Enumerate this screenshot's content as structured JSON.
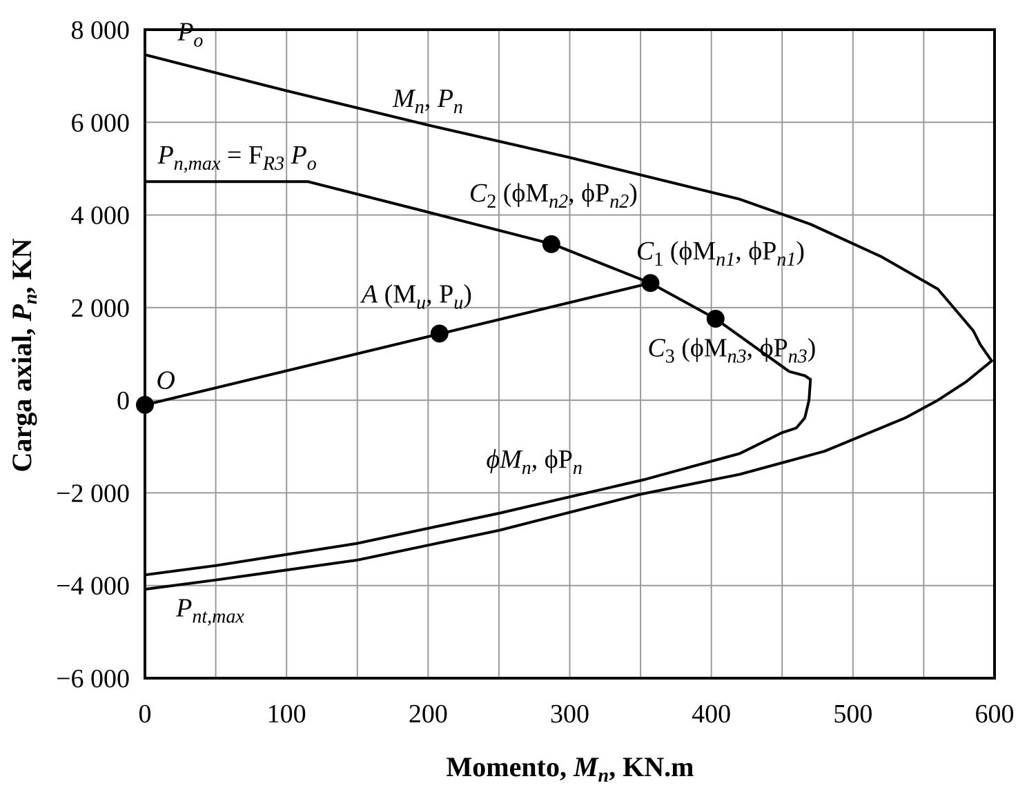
{
  "chart_data": {
    "type": "line",
    "xlabel": {
      "pre": "Momento, ",
      "var": "M",
      "sub": "n",
      "post": ", KN.m"
    },
    "ylabel": {
      "pre": "Carga axial, ",
      "var": "P",
      "sub": "n",
      "post": ", KN"
    },
    "xlim": [
      0,
      600
    ],
    "ylim": [
      -6000,
      8000
    ],
    "x_ticks": [
      0,
      100,
      200,
      300,
      400,
      500,
      600
    ],
    "x_tick_labels": [
      "0",
      "100",
      "200",
      "300",
      "400",
      "500",
      "600"
    ],
    "y_ticks": [
      8000,
      6000,
      4000,
      2000,
      0,
      -2000,
      -4000,
      -6000
    ],
    "y_tick_labels": [
      "8 000",
      "6 000",
      "4 000",
      "2 000",
      "0",
      "−2 000",
      "−4 000",
      "−6 000"
    ],
    "x_minor_grid_step": 50,
    "grid": true,
    "series": [
      {
        "x": [
          0,
          100,
          200,
          300,
          380,
          420,
          470,
          520,
          560,
          585,
          590,
          595,
          598,
          580,
          560,
          537,
          480,
          420,
          350,
          250,
          150,
          50,
          0
        ],
        "y": [
          7460,
          6680,
          5940,
          5240,
          4640,
          4340,
          3800,
          3100,
          2400,
          1500,
          1200,
          980,
          850,
          400,
          0,
          -380,
          -1100,
          -1600,
          -2030,
          -2810,
          -3450,
          -3880,
          -4080
        ]
      },
      {
        "x": [
          0,
          115,
          200,
          288,
          357,
          403,
          455,
          466,
          470,
          469,
          466,
          460,
          450,
          420,
          353,
          250,
          150,
          50,
          0
        ],
        "y": [
          4720,
          4720,
          4060,
          3370,
          2530,
          1760,
          620,
          530,
          450,
          0,
          -380,
          -600,
          -700,
          -1150,
          -1710,
          -2440,
          -3090,
          -3570,
          -3770
        ]
      },
      {
        "x": [
          0,
          357
        ],
        "y": [
          -100,
          2530
        ]
      }
    ],
    "points": [
      {
        "name": "O",
        "x": 0,
        "y": -100
      },
      {
        "name": "A",
        "x": 208,
        "y": 1440
      },
      {
        "name": "C1",
        "x": 357,
        "y": 2530
      },
      {
        "name": "C2",
        "x": 287,
        "y": 3370
      },
      {
        "name": "C3",
        "x": 403,
        "y": 1760
      }
    ],
    "annotations": [
      {
        "id": "po",
        "base": "P",
        "sub": "o",
        "x": 23,
        "y": 7770
      },
      {
        "id": "mn-pn",
        "parts": [
          {
            "t": "M"
          },
          {
            "s": "n"
          },
          {
            "t": ", P"
          },
          {
            "s": "n"
          }
        ],
        "x": 175,
        "y": 6330
      },
      {
        "id": "pnmax",
        "parts": [
          {
            "t": "P"
          },
          {
            "s": "n,max"
          },
          {
            "u": " = F"
          },
          {
            "s": "R3"
          },
          {
            "t": " P"
          },
          {
            "s": "o"
          }
        ],
        "x": 9,
        "y": 5110
      },
      {
        "id": "c2-label",
        "parts": [
          {
            "t": "C"
          },
          {
            "s": "2"
          },
          {
            "u": " (ϕM"
          },
          {
            "s": "n2"
          },
          {
            "u": ", ϕP"
          },
          {
            "s": "n2"
          },
          {
            "u": ")"
          }
        ],
        "x": 229,
        "y": 4290
      },
      {
        "id": "c1-label",
        "parts": [
          {
            "t": "C"
          },
          {
            "s": "1"
          },
          {
            "u": " (ϕM"
          },
          {
            "s": "n1"
          },
          {
            "u": ", ϕP"
          },
          {
            "s": "n1"
          },
          {
            "u": ")"
          }
        ],
        "x": 347,
        "y": 3040
      },
      {
        "id": "a-label",
        "parts": [
          {
            "t": "A"
          },
          {
            "u": " (M"
          },
          {
            "s": "u"
          },
          {
            "u": ", P"
          },
          {
            "s": "u"
          },
          {
            "u": ")"
          }
        ],
        "x": 153,
        "y": 2110
      },
      {
        "id": "c3-label",
        "parts": [
          {
            "t": "C"
          },
          {
            "s": "3"
          },
          {
            "u": " (ϕM"
          },
          {
            "s": "n3"
          },
          {
            "u": ", ϕP"
          },
          {
            "s": "n3"
          },
          {
            "u": ")"
          }
        ],
        "x": 355,
        "y": 950
      },
      {
        "id": "o-label",
        "parts": [
          {
            "t": "O"
          }
        ],
        "x": 8,
        "y": 250
      },
      {
        "id": "phimn-label",
        "parts": [
          {
            "t": "ϕM"
          },
          {
            "s": "n"
          },
          {
            "u": ", ϕP"
          },
          {
            "s": "n"
          }
        ],
        "x": 241,
        "y": -1460
      },
      {
        "id": "pntmax",
        "parts": [
          {
            "t": "P"
          },
          {
            "s": "nt,max"
          }
        ],
        "x": 22,
        "y": -4670
      }
    ]
  }
}
